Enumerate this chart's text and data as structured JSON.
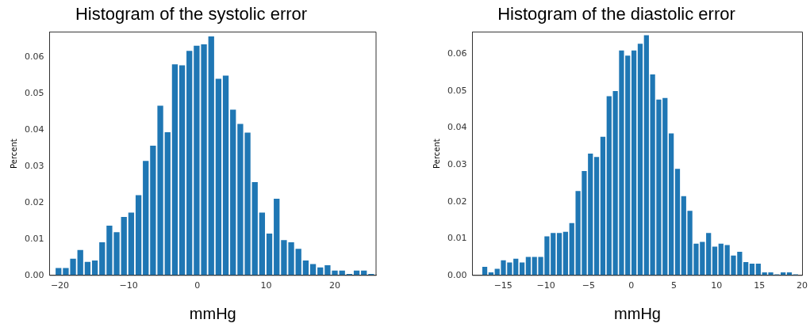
{
  "chart_data": [
    {
      "type": "histogram",
      "title": "Histogram of the systolic error",
      "xlabel": "mmHg",
      "ylabel": "Percent",
      "color": "#1f77b4",
      "bins": [
        -20.73,
        -19.67,
        -18.61,
        -17.56,
        -16.5,
        -15.44,
        -14.38,
        -13.32,
        -12.27,
        -11.21,
        -10.15,
        -9.09,
        -8.03,
        -6.98,
        -5.92,
        -4.86,
        -3.8,
        -2.74,
        -1.69,
        -0.63,
        0.43,
        1.49,
        2.55,
        3.6,
        4.66,
        5.72,
        6.78,
        7.84,
        8.89,
        9.95,
        11.01,
        12.07,
        13.13,
        14.18,
        15.24,
        16.3,
        17.36,
        18.42,
        19.47,
        20.53,
        21.59,
        22.65,
        23.71,
        24.76,
        25.82
      ],
      "values": [
        0.002,
        0.002,
        0.0046,
        0.007,
        0.0037,
        0.0041,
        0.0091,
        0.0137,
        0.0119,
        0.0161,
        0.0173,
        0.0221,
        0.0315,
        0.0357,
        0.0467,
        0.0394,
        0.0581,
        0.0578,
        0.0618,
        0.0632,
        0.0636,
        0.0658,
        0.0541,
        0.055,
        0.0456,
        0.0417,
        0.0393,
        0.0257,
        0.0173,
        0.0115,
        0.0211,
        0.0097,
        0.0091,
        0.0073,
        0.0041,
        0.0031,
        0.0022,
        0.0028,
        0.0013,
        0.0013,
        0.0004,
        0.0013,
        0.0013,
        0.0004
      ],
      "xlim": [
        -21.5,
        26
      ],
      "xticks": [
        -20,
        -10,
        0,
        10,
        20
      ],
      "ylim": [
        0,
        0.067
      ],
      "yticks": [
        {
          "value": 0,
          "label": "0.00"
        },
        0.01,
        0.02,
        0.03,
        0.04,
        0.05,
        0.06
      ]
    },
    {
      "type": "histogram",
      "title": "Histogram of the diastolic error",
      "xlabel": "mmHg",
      "ylabel": "Percent",
      "color": "#1f77b4",
      "bins": [
        -17.52,
        -16.79,
        -16.06,
        -15.34,
        -14.61,
        -13.88,
        -13.15,
        -12.42,
        -11.7,
        -10.97,
        -10.24,
        -9.51,
        -8.78,
        -8.06,
        -7.33,
        -6.6,
        -5.87,
        -5.14,
        -4.42,
        -3.69,
        -2.96,
        -2.23,
        -1.5,
        -0.78,
        -0.05,
        0.68,
        1.41,
        2.14,
        2.86,
        3.59,
        4.32,
        5.05,
        5.78,
        6.5,
        7.23,
        7.96,
        8.69,
        9.42,
        10.14,
        10.87,
        11.6,
        12.33,
        13.06,
        13.78,
        14.51,
        15.24,
        15.97,
        16.7,
        17.42,
        18.15,
        18.88,
        19.61
      ],
      "values": [
        0.0023,
        0.0008,
        0.0018,
        0.0041,
        0.0035,
        0.0045,
        0.0035,
        0.005,
        0.005,
        0.005,
        0.0106,
        0.0115,
        0.0115,
        0.0118,
        0.0142,
        0.0229,
        0.0283,
        0.033,
        0.0321,
        0.0376,
        0.0486,
        0.05,
        0.061,
        0.0596,
        0.061,
        0.0628,
        0.0651,
        0.0545,
        0.0477,
        0.0481,
        0.0385,
        0.0289,
        0.0215,
        0.0175,
        0.0086,
        0.0091,
        0.0115,
        0.0078,
        0.0086,
        0.0082,
        0.0054,
        0.0064,
        0.0036,
        0.0032,
        0.0032,
        0.0008,
        0.0008,
        0.0003,
        0.0008,
        0.0008,
        0.0003
      ],
      "xlim": [
        -18.6,
        20.05
      ],
      "xticks": [
        -15,
        -10,
        -5,
        0,
        5,
        10,
        15,
        20
      ],
      "ylim": [
        0,
        0.066
      ],
      "yticks": [
        {
          "value": 0,
          "label": "0.00"
        },
        0.01,
        0.02,
        0.03,
        0.04,
        0.05,
        0.06
      ]
    }
  ]
}
